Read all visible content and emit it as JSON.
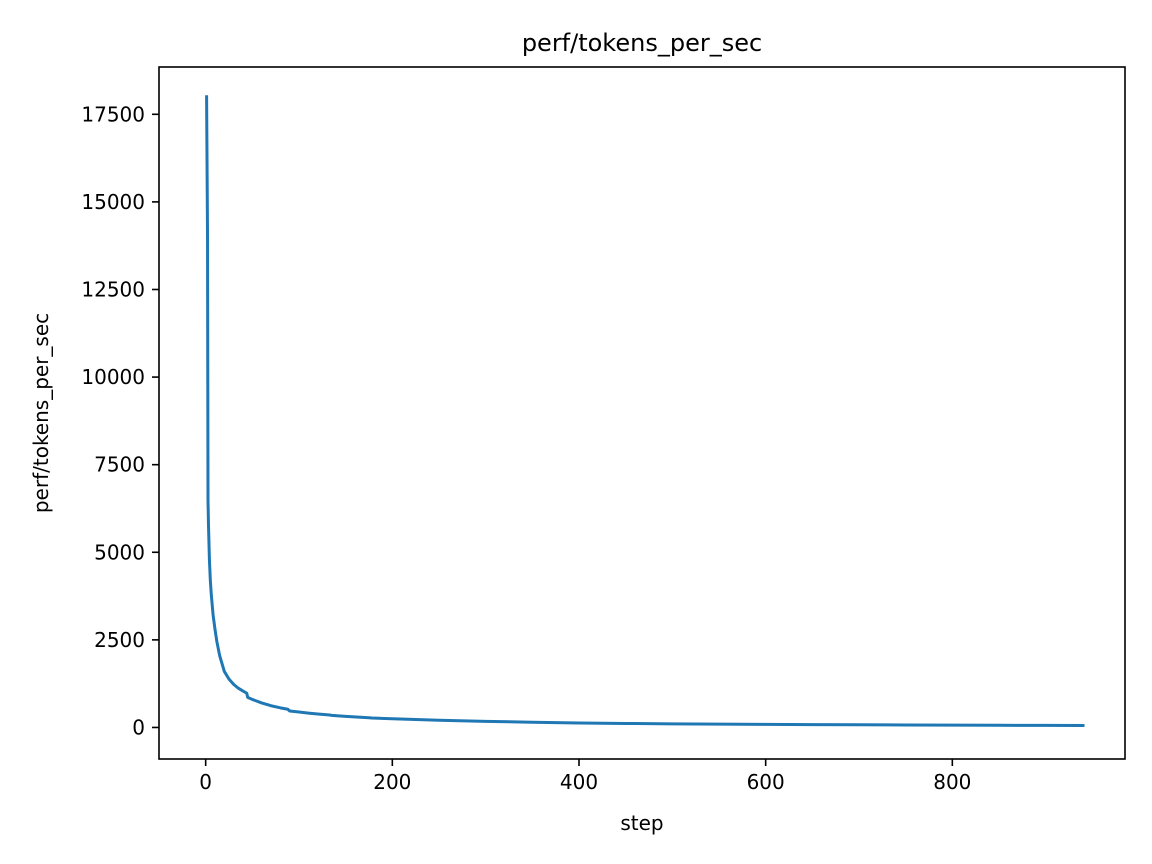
{
  "chart_data": {
    "type": "line",
    "title": "perf/tokens_per_sec",
    "xlabel": "step",
    "ylabel": "perf/tokens_per_sec",
    "xlim": [
      -50,
      985
    ],
    "ylim": [
      -900,
      18850
    ],
    "xticks": [
      0,
      200,
      400,
      600,
      800
    ],
    "yticks": [
      0,
      2500,
      5000,
      7500,
      10000,
      12500,
      15000,
      17500
    ],
    "grid": false,
    "legend": "none",
    "series": [
      {
        "color": "#1f77b4",
        "x": [
          1,
          2,
          2.5,
          3,
          4,
          5,
          6,
          8,
          10,
          12,
          15,
          20,
          25,
          30,
          35,
          40,
          44,
          45,
          50,
          60,
          70,
          80,
          88,
          90,
          100,
          110,
          120,
          133,
          135,
          150,
          175,
          178,
          200,
          250,
          300,
          350,
          400,
          450,
          500,
          550,
          600,
          650,
          700,
          750,
          800,
          850,
          900,
          940
        ],
        "y": [
          18000,
          14000,
          6500,
          5800,
          4800,
          4200,
          3800,
          3200,
          2800,
          2450,
          2050,
          1600,
          1380,
          1230,
          1120,
          1040,
          980,
          860,
          800,
          700,
          620,
          560,
          520,
          470,
          440,
          410,
          385,
          355,
          345,
          315,
          278,
          270,
          248,
          205,
          175,
          150,
          128,
          115,
          103,
          95,
          88,
          82,
          77,
          72,
          67,
          63,
          58,
          55
        ]
      }
    ]
  }
}
